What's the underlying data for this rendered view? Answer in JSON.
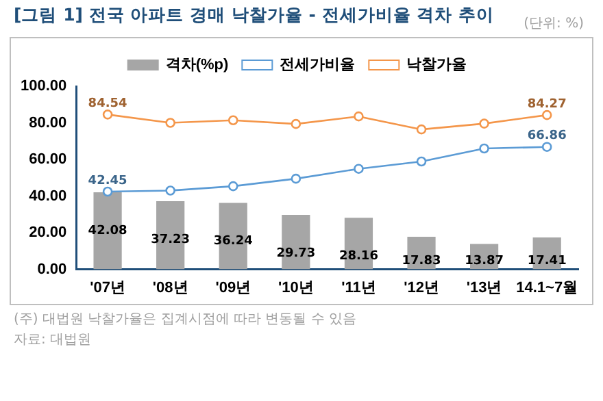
{
  "chart_data": {
    "type": "bar",
    "title": "[그림 1] 전국 아파트 경매 낙찰가율 - 전세가비율 격차 추이",
    "categories": [
      "'07년",
      "'08년",
      "'09년",
      "'10년",
      "'11년",
      "'12년",
      "'13년",
      "14.1~7월"
    ],
    "series": [
      {
        "name": "격차(%p)",
        "color": "#a6a6a6",
        "values": [
          42.08,
          37.23,
          36.24,
          29.73,
          28.16,
          17.83,
          13.87,
          17.41
        ],
        "value_labels": [
          "42.08",
          "37.23",
          "36.24",
          "29.73",
          "28.16",
          "17.83",
          "13.87",
          "17.41"
        ]
      },
      {
        "name": "전세가비율",
        "type": "line",
        "color": "#5b9bd5",
        "values": [
          42.45,
          43.0,
          45.4,
          49.5,
          54.9,
          58.9,
          66.0,
          66.86
        ],
        "value_labels": [
          "42.45",
          null,
          null,
          null,
          null,
          null,
          null,
          "66.86"
        ]
      },
      {
        "name": "낙찰가율",
        "type": "line",
        "color": "#f4964a",
        "values": [
          84.54,
          80.0,
          81.4,
          79.4,
          83.5,
          76.4,
          79.6,
          84.27
        ],
        "value_labels": [
          "84.54",
          null,
          null,
          null,
          null,
          null,
          null,
          "84.27"
        ]
      }
    ],
    "ylim": [
      0,
      100
    ],
    "yticks": [
      {
        "value": 0,
        "label": "0.00"
      },
      {
        "value": 20,
        "label": "20.00"
      },
      {
        "value": 40,
        "label": "40.00"
      },
      {
        "value": 60,
        "label": "60.00"
      },
      {
        "value": 80,
        "label": "80.00"
      },
      {
        "value": 100,
        "label": "100.00"
      }
    ],
    "grid": false,
    "legend": "top",
    "marker": "circle",
    "annotations": [
      "(단위: %)",
      "(주) 대법원 낙찰가율은 집계시점에 따라 변동될 수 있음",
      "자료: 대법원"
    ]
  }
}
